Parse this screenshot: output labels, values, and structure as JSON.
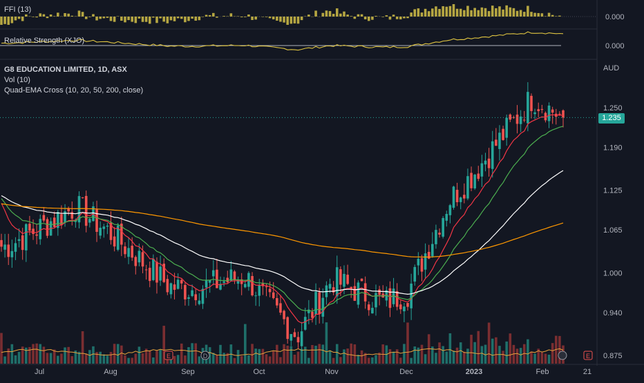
{
  "header": {
    "symbol_title": "G8 EDUCATION LIMITED, 1D, ASX",
    "indicators": [
      "Vol (10)",
      "Quad-EMA Cross (10, 20, 50, 200, close)"
    ]
  },
  "panes": {
    "ffi": {
      "label": "FFI (13)",
      "value": "0.000"
    },
    "rs": {
      "label": "Relative Strength (XJO)",
      "value": "0.000"
    }
  },
  "price_axis": {
    "currency": "AUD",
    "ticks": [
      "1.250",
      "1.190",
      "1.125",
      "1.065",
      "1.000",
      "0.940",
      "0.875"
    ],
    "last_price": "1.235",
    "last_price_color": "#26a69a"
  },
  "time_axis": {
    "labels": [
      "Jul",
      "Aug",
      "Sep",
      "Oct",
      "Nov",
      "Dec",
      "2023",
      "Feb",
      "21"
    ]
  },
  "events": {
    "markers": [
      "E",
      "D",
      "E"
    ]
  },
  "colors": {
    "up": "#26a69a",
    "down": "#ef5350",
    "ema10": "#f23645",
    "ema20": "#4caf50",
    "ema50": "#ffffff",
    "ema200": "#ff9800",
    "ffi": "#b5a642",
    "rs": "#e0c541",
    "vol_up": "#1f6f6a",
    "vol_down": "#7a2e31",
    "vol_ma": "#e8a33c"
  },
  "chart_data": {
    "type": "candlestick",
    "title": "G8 EDUCATION LIMITED, 1D, ASX",
    "ylim": [
      0.865,
      1.29
    ],
    "price_grid_lines": false,
    "monthly_anchors": [
      {
        "month": "Jul",
        "close": 1.04
      },
      {
        "month": "Jul-end",
        "close": 1.1
      },
      {
        "month": "Aug",
        "close": 1.06
      },
      {
        "month": "Aug-end",
        "close": 0.98
      },
      {
        "month": "Sep",
        "close": 0.975
      },
      {
        "month": "Sep-end",
        "close": 0.995
      },
      {
        "month": "Oct",
        "close": 0.97
      },
      {
        "month": "Oct-end",
        "close": 0.905
      },
      {
        "month": "Nov",
        "close": 0.99
      },
      {
        "month": "Nov-end",
        "close": 0.955
      },
      {
        "month": "Dec",
        "close": 0.97
      },
      {
        "month": "Dec-mid",
        "close": 1.11
      },
      {
        "month": "2023",
        "close": 1.15
      },
      {
        "month": "Jan-end",
        "close": 1.265
      },
      {
        "month": "Feb",
        "close": 1.235
      }
    ],
    "last_close": 1.235
  }
}
